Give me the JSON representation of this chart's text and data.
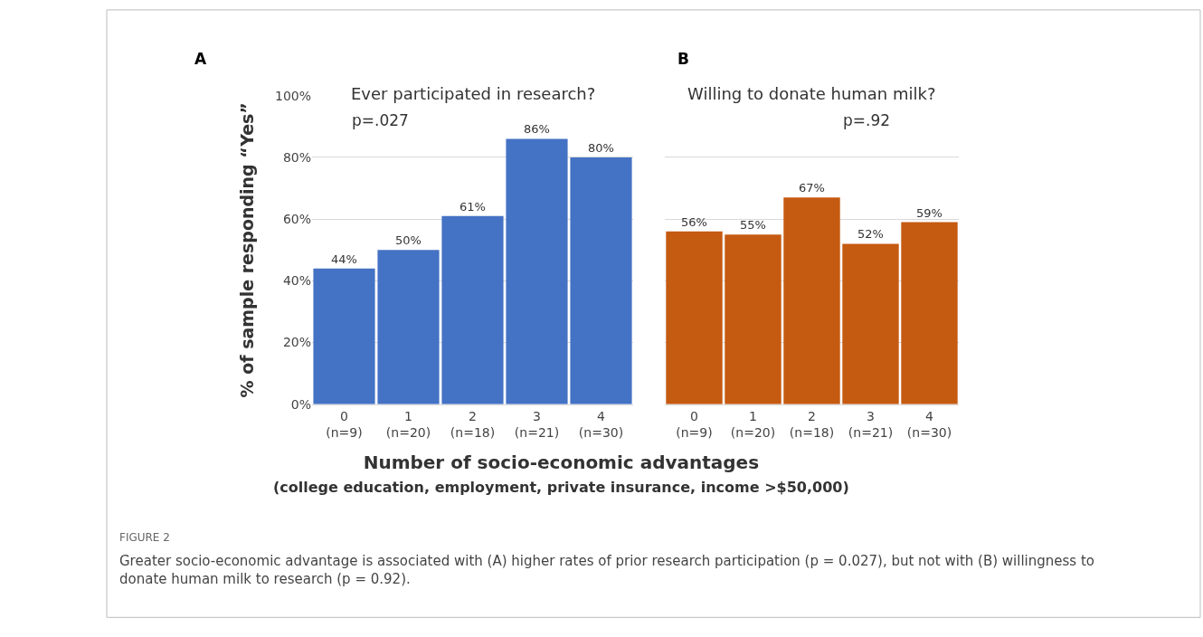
{
  "chart_data": [
    {
      "type": "bar",
      "title": "Ever participated in research?",
      "ylabel": "% of sample responding “Yes”",
      "xlabel": "Number of socio-economic advantages\n(college education, employment, private insurance, income >$50,000)",
      "categories": [
        "0\n(n=9)",
        "1\n(n=20)",
        "2\n(n=18)",
        "3\n(n=21)",
        "4\n(n=30)"
      ],
      "series": [
        {
          "color": "#4472c4",
          "values": [
            44,
            50,
            61,
            86,
            80
          ],
          "value_labels": [
            "44%",
            "50%",
            "61%",
            "86%",
            "80%"
          ]
        }
      ],
      "ylim": [
        0,
        100
      ],
      "yticks": [
        {
          "value": 0,
          "label": "0%"
        },
        {
          "value": 20,
          "label": "20%"
        },
        {
          "value": 40,
          "label": "40%"
        },
        {
          "value": 60,
          "label": "60%"
        },
        {
          "value": 80,
          "label": "80%"
        },
        {
          "value": 100,
          "label": "100%"
        }
      ],
      "grid": "y",
      "annotations": [
        "A",
        "p=.027",
        "FIGURE 2",
        "Greater socio-economic advantage is associated with (A) higher rates of prior research participation (p = 0.027), but not with (B) willingness to donate human milk to research (p = 0.92)."
      ]
    },
    {
      "type": "bar",
      "title": "Willing to donate human milk?",
      "categories": [
        "0\n(n=9)",
        "1\n(n=20)",
        "2\n(n=18)",
        "3\n(n=21)",
        "4\n(n=30)"
      ],
      "series": [
        {
          "color": "#c55a11",
          "values": [
            56,
            55,
            67,
            52,
            59
          ],
          "value_labels": [
            "56%",
            "55%",
            "67%",
            "52%",
            "59%"
          ]
        }
      ],
      "ylim": [
        0,
        100
      ],
      "yticks": [
        {
          "value": 0,
          "label": null
        },
        {
          "value": 20,
          "label": null
        },
        {
          "value": 40,
          "label": null
        },
        {
          "value": 60,
          "label": null
        },
        {
          "value": 80,
          "label": null
        },
        {
          "value": 100,
          "label": null
        }
      ],
      "grid": "y",
      "tick_labels": "x",
      "annotations": [
        "B",
        "p=.92"
      ]
    }
  ]
}
